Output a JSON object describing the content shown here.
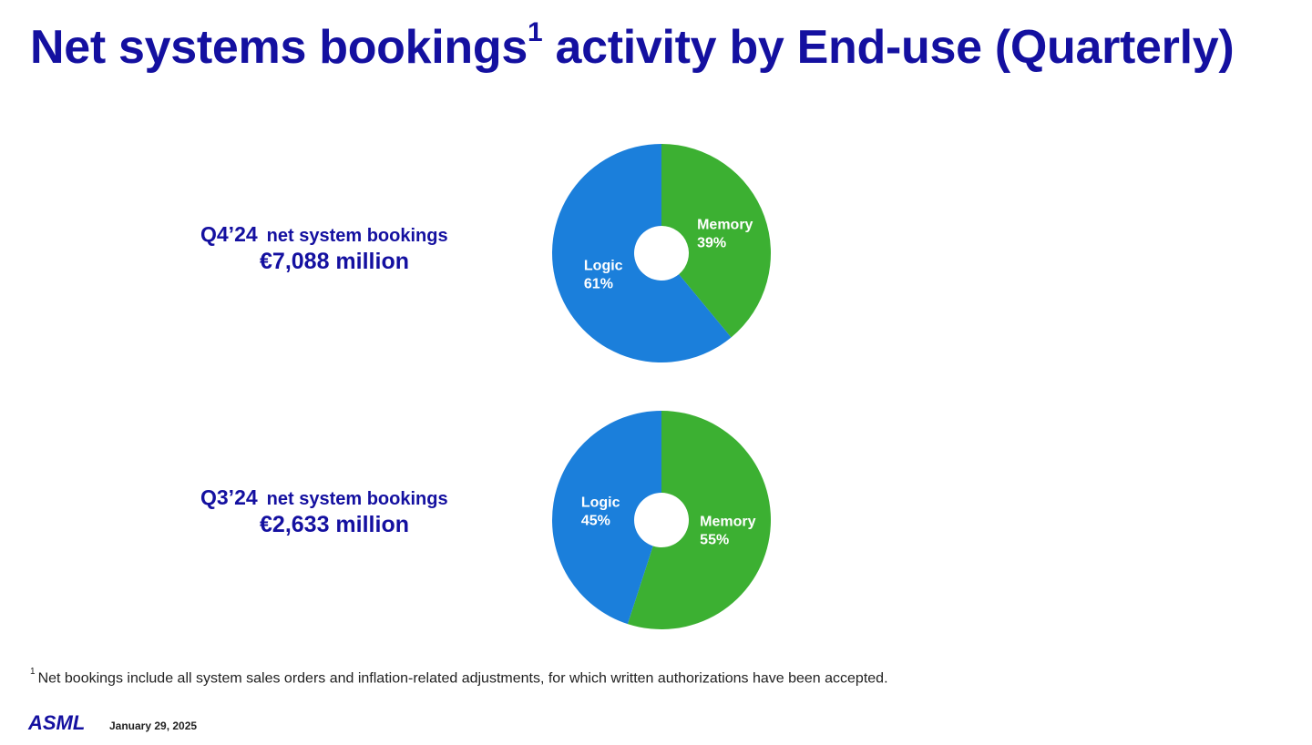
{
  "title": {
    "main": "Net systems bookings",
    "superscript": "1",
    "rest": " activity by End-use (Quarterly)"
  },
  "captions": {
    "q4": {
      "quarter": "Q4’24",
      "subtitle": "net system bookings",
      "amount": "€7,088 million"
    },
    "q3": {
      "quarter": "Q3’24",
      "subtitle": "net system bookings",
      "amount": "€2,633 million"
    }
  },
  "chart_data": [
    {
      "type": "pie",
      "chart_id": "q4",
      "donut": true,
      "slices": [
        {
          "label": "Memory",
          "value": 39,
          "value_label": "39%",
          "color": "#3cb032"
        },
        {
          "label": "Logic",
          "value": 61,
          "value_label": "61%",
          "color": "#1b7fdb"
        }
      ]
    },
    {
      "type": "pie",
      "chart_id": "q3",
      "donut": true,
      "slices": [
        {
          "label": "Memory",
          "value": 55,
          "value_label": "55%",
          "color": "#3cb032"
        },
        {
          "label": "Logic",
          "value": 45,
          "value_label": "45%",
          "color": "#1b7fdb"
        }
      ]
    }
  ],
  "footnote": {
    "marker": "1",
    "text": "Net bookings include all system sales orders and inflation-related adjustments, for which written authorizations have been accepted."
  },
  "footer": {
    "logo": "ASML",
    "date": "January 29, 2025"
  }
}
